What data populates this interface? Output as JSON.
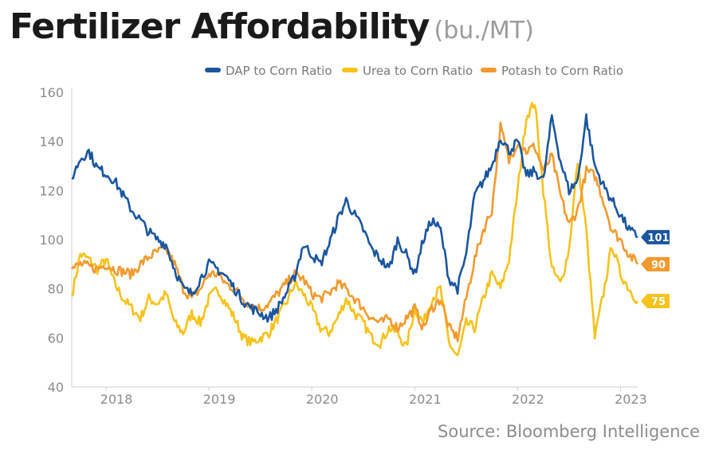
{
  "title": "Fertilizer Affordability",
  "subtitle": "(bu./MT)",
  "source": "Source: Bloomberg Intelligence",
  "chart_data": {
    "type": "line",
    "title": "Fertilizer Affordability",
    "subtitle": "(bu./MT)",
    "xlabel": "",
    "ylabel": "",
    "x_tick_labels": [
      "2018",
      "2019",
      "2020",
      "2021",
      "2022",
      "2023"
    ],
    "x_range": [
      "2017-09",
      "2023-03"
    ],
    "ylim": [
      40,
      160
    ],
    "y_ticks": [
      40,
      60,
      80,
      100,
      120,
      140,
      160
    ],
    "grid": false,
    "legend_position": "top-right",
    "series": [
      {
        "name": "DAP to Corn Ratio",
        "color": "#1a56a0",
        "end_label": "101",
        "points": [
          [
            "2017-09",
            125
          ],
          [
            "2017-10",
            133
          ],
          [
            "2017-11",
            136
          ],
          [
            "2017-12",
            129
          ],
          [
            "2018-01",
            127
          ],
          [
            "2018-02",
            124
          ],
          [
            "2018-03",
            118
          ],
          [
            "2018-04",
            112
          ],
          [
            "2018-05",
            108
          ],
          [
            "2018-06",
            103
          ],
          [
            "2018-07",
            100
          ],
          [
            "2018-08",
            98
          ],
          [
            "2018-09",
            88
          ],
          [
            "2018-10",
            80
          ],
          [
            "2018-11",
            78
          ],
          [
            "2018-12",
            84
          ],
          [
            "2019-01",
            90
          ],
          [
            "2019-02",
            88
          ],
          [
            "2019-03",
            85
          ],
          [
            "2019-04",
            80
          ],
          [
            "2019-05",
            75
          ],
          [
            "2019-06",
            72
          ],
          [
            "2019-07",
            70
          ],
          [
            "2019-08",
            68
          ],
          [
            "2019-09",
            72
          ],
          [
            "2019-10",
            78
          ],
          [
            "2019-11",
            85
          ],
          [
            "2019-12",
            98
          ],
          [
            "2020-01",
            94
          ],
          [
            "2020-02",
            90
          ],
          [
            "2020-03",
            98
          ],
          [
            "2020-04",
            108
          ],
          [
            "2020-05",
            116
          ],
          [
            "2020-06",
            110
          ],
          [
            "2020-07",
            104
          ],
          [
            "2020-08",
            96
          ],
          [
            "2020-09",
            92
          ],
          [
            "2020-10",
            88
          ],
          [
            "2020-11",
            100
          ],
          [
            "2020-12",
            94
          ],
          [
            "2021-01",
            86
          ],
          [
            "2021-02",
            100
          ],
          [
            "2021-03",
            108
          ],
          [
            "2021-04",
            104
          ],
          [
            "2021-05",
            84
          ],
          [
            "2021-06",
            80
          ],
          [
            "2021-07",
            94
          ],
          [
            "2021-08",
            118
          ],
          [
            "2021-09",
            124
          ],
          [
            "2021-10",
            130
          ],
          [
            "2021-11",
            142
          ],
          [
            "2021-12",
            136
          ],
          [
            "2022-01",
            140
          ],
          [
            "2022-02",
            126
          ],
          [
            "2022-03",
            128
          ],
          [
            "2022-04",
            124
          ],
          [
            "2022-05",
            150
          ],
          [
            "2022-06",
            132
          ],
          [
            "2022-07",
            120
          ],
          [
            "2022-08",
            124
          ],
          [
            "2022-09",
            150
          ],
          [
            "2022-10",
            130
          ],
          [
            "2022-11",
            122
          ],
          [
            "2022-12",
            116
          ],
          [
            "2023-01",
            110
          ],
          [
            "2023-02",
            104
          ],
          [
            "2023-03",
            101
          ]
        ]
      },
      {
        "name": "Urea to Corn Ratio",
        "color": "#f7c21b",
        "end_label": "75",
        "points": [
          [
            "2017-09",
            77
          ],
          [
            "2017-10",
            94
          ],
          [
            "2017-11",
            92
          ],
          [
            "2017-12",
            88
          ],
          [
            "2018-01",
            92
          ],
          [
            "2018-02",
            82
          ],
          [
            "2018-03",
            76
          ],
          [
            "2018-04",
            72
          ],
          [
            "2018-05",
            68
          ],
          [
            "2018-06",
            76
          ],
          [
            "2018-07",
            74
          ],
          [
            "2018-08",
            78
          ],
          [
            "2018-09",
            66
          ],
          [
            "2018-10",
            62
          ],
          [
            "2018-11",
            70
          ],
          [
            "2018-12",
            66
          ],
          [
            "2019-01",
            76
          ],
          [
            "2019-02",
            80
          ],
          [
            "2019-03",
            74
          ],
          [
            "2019-04",
            68
          ],
          [
            "2019-05",
            60
          ],
          [
            "2019-06",
            58
          ],
          [
            "2019-07",
            60
          ],
          [
            "2019-08",
            62
          ],
          [
            "2019-09",
            68
          ],
          [
            "2019-10",
            74
          ],
          [
            "2019-11",
            82
          ],
          [
            "2019-12",
            78
          ],
          [
            "2020-01",
            72
          ],
          [
            "2020-02",
            64
          ],
          [
            "2020-03",
            62
          ],
          [
            "2020-04",
            68
          ],
          [
            "2020-05",
            76
          ],
          [
            "2020-06",
            70
          ],
          [
            "2020-07",
            66
          ],
          [
            "2020-08",
            60
          ],
          [
            "2020-09",
            58
          ],
          [
            "2020-10",
            64
          ],
          [
            "2020-11",
            62
          ],
          [
            "2020-12",
            56
          ],
          [
            "2021-01",
            72
          ],
          [
            "2021-02",
            66
          ],
          [
            "2021-03",
            76
          ],
          [
            "2021-04",
            80
          ],
          [
            "2021-05",
            58
          ],
          [
            "2021-06",
            52
          ],
          [
            "2021-07",
            66
          ],
          [
            "2021-08",
            64
          ],
          [
            "2021-09",
            76
          ],
          [
            "2021-10",
            86
          ],
          [
            "2021-11",
            80
          ],
          [
            "2021-12",
            92
          ],
          [
            "2022-01",
            120
          ],
          [
            "2022-02",
            150
          ],
          [
            "2022-03",
            156
          ],
          [
            "2022-04",
            120
          ],
          [
            "2022-05",
            88
          ],
          [
            "2022-06",
            82
          ],
          [
            "2022-07",
            96
          ],
          [
            "2022-08",
            132
          ],
          [
            "2022-09",
            104
          ],
          [
            "2022-10",
            60
          ],
          [
            "2022-11",
            78
          ],
          [
            "2022-12",
            98
          ],
          [
            "2023-01",
            86
          ],
          [
            "2023-02",
            80
          ],
          [
            "2023-03",
            75
          ]
        ]
      },
      {
        "name": "Potash to Corn Ratio",
        "color": "#f29a2e",
        "end_label": "90",
        "points": [
          [
            "2017-09",
            88
          ],
          [
            "2017-10",
            90
          ],
          [
            "2017-11",
            89
          ],
          [
            "2017-12",
            88
          ],
          [
            "2018-01",
            90
          ],
          [
            "2018-02",
            88
          ],
          [
            "2018-03",
            87
          ],
          [
            "2018-04",
            86
          ],
          [
            "2018-05",
            90
          ],
          [
            "2018-06",
            93
          ],
          [
            "2018-07",
            95
          ],
          [
            "2018-08",
            96
          ],
          [
            "2018-09",
            90
          ],
          [
            "2018-10",
            80
          ],
          [
            "2018-11",
            76
          ],
          [
            "2018-12",
            80
          ],
          [
            "2019-01",
            86
          ],
          [
            "2019-02",
            86
          ],
          [
            "2019-03",
            82
          ],
          [
            "2019-04",
            80
          ],
          [
            "2019-05",
            76
          ],
          [
            "2019-06",
            73
          ],
          [
            "2019-07",
            72
          ],
          [
            "2019-08",
            74
          ],
          [
            "2019-09",
            78
          ],
          [
            "2019-10",
            82
          ],
          [
            "2019-11",
            86
          ],
          [
            "2019-12",
            84
          ],
          [
            "2020-01",
            78
          ],
          [
            "2020-02",
            76
          ],
          [
            "2020-03",
            78
          ],
          [
            "2020-04",
            82
          ],
          [
            "2020-05",
            80
          ],
          [
            "2020-06",
            76
          ],
          [
            "2020-07",
            72
          ],
          [
            "2020-08",
            68
          ],
          [
            "2020-09",
            66
          ],
          [
            "2020-10",
            68
          ],
          [
            "2020-11",
            64
          ],
          [
            "2020-12",
            68
          ],
          [
            "2021-01",
            72
          ],
          [
            "2021-02",
            64
          ],
          [
            "2021-03",
            72
          ],
          [
            "2021-04",
            76
          ],
          [
            "2021-05",
            64
          ],
          [
            "2021-06",
            60
          ],
          [
            "2021-07",
            76
          ],
          [
            "2021-08",
            92
          ],
          [
            "2021-09",
            104
          ],
          [
            "2021-10",
            112
          ],
          [
            "2021-11",
            146
          ],
          [
            "2021-12",
            132
          ],
          [
            "2022-01",
            140
          ],
          [
            "2022-02",
            136
          ],
          [
            "2022-03",
            138
          ],
          [
            "2022-04",
            128
          ],
          [
            "2022-05",
            134
          ],
          [
            "2022-06",
            118
          ],
          [
            "2022-07",
            106
          ],
          [
            "2022-08",
            112
          ],
          [
            "2022-09",
            128
          ],
          [
            "2022-10",
            126
          ],
          [
            "2022-11",
            116
          ],
          [
            "2022-12",
            104
          ],
          [
            "2023-01",
            100
          ],
          [
            "2023-02",
            94
          ],
          [
            "2023-03",
            90
          ]
        ]
      }
    ]
  }
}
